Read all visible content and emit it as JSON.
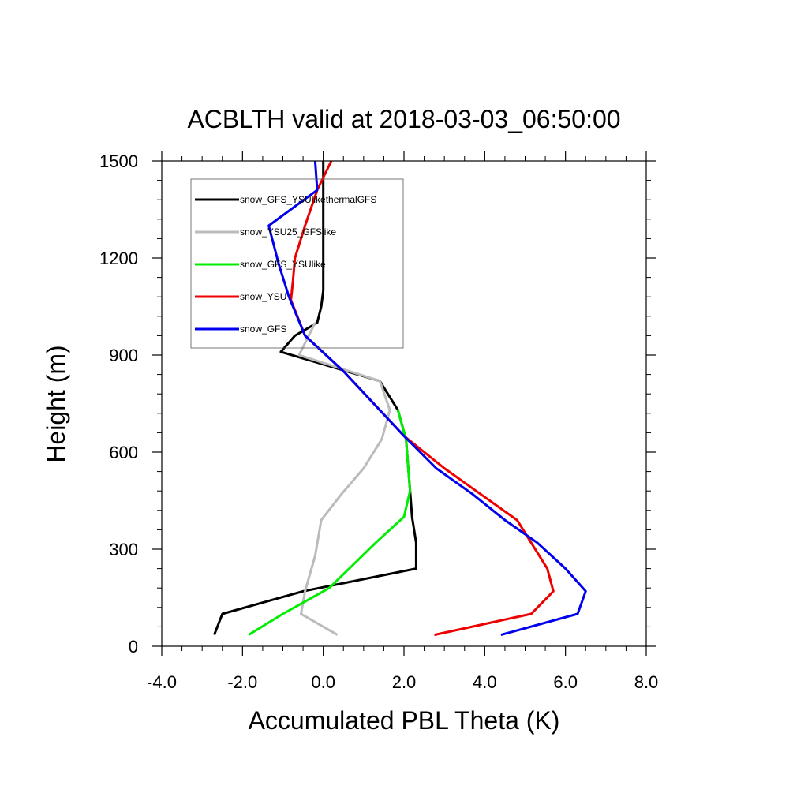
{
  "chart_data": {
    "type": "line",
    "title": "ACBLTH valid at 2018-03-03_06:50:00",
    "xlabel": "Accumulated PBL Theta (K)",
    "ylabel": "Height (m)",
    "xlim": [
      -4.0,
      8.0
    ],
    "ylim": [
      0,
      1500
    ],
    "xticks": [
      -4.0,
      -2.0,
      0.0,
      2.0,
      4.0,
      6.0,
      8.0
    ],
    "xtick_labels": [
      "-4.0",
      "-2.0",
      "0.0",
      "2.0",
      "4.0",
      "6.0",
      "8.0"
    ],
    "yticks": [
      0,
      300,
      600,
      900,
      1200,
      1500
    ],
    "ytick_labels": [
      "0",
      "300",
      "600",
      "900",
      "1200",
      "1500"
    ],
    "grid": false,
    "legend_position": "top-left",
    "series": [
      {
        "name": "snow_GFS_YSUlikethermalGFS",
        "color": "#000000",
        "x": [
          -2.7,
          -2.5,
          -0.5,
          2.3,
          2.3,
          2.2,
          2.15,
          2.1,
          2.05,
          1.85,
          1.4,
          -1.05,
          -0.7,
          -0.15,
          -0.05,
          0.0,
          0.0,
          0.0
        ],
        "y": [
          35,
          100,
          170,
          240,
          320,
          400,
          480,
          560,
          640,
          730,
          820,
          910,
          960,
          1000,
          1050,
          1100,
          1300,
          1500
        ]
      },
      {
        "name": "snow_YSU25_GFSlike",
        "color": "#bbbbbb",
        "x": [
          0.35,
          -0.55,
          -0.45,
          -0.2,
          -0.05,
          0.45,
          1.0,
          1.45,
          1.65,
          1.4,
          -0.6,
          -0.2
        ],
        "y": [
          35,
          100,
          170,
          280,
          390,
          470,
          550,
          640,
          730,
          820,
          900,
          1000
        ]
      },
      {
        "name": "snow_GFS_YSUlike",
        "color": "#00ee00",
        "x": [
          -1.85,
          -1.0,
          0.15,
          1.3,
          2.0,
          2.15,
          2.1,
          2.05,
          1.85
        ],
        "y": [
          35,
          100,
          180,
          320,
          400,
          480,
          560,
          640,
          730
        ]
      },
      {
        "name": "snow_YSU",
        "color": "#ee0000",
        "x": [
          2.75,
          5.15,
          5.7,
          5.55,
          5.15,
          4.8,
          3.9,
          3.0,
          2.0,
          0.5,
          -0.45,
          -0.8,
          -0.75,
          -0.7,
          -0.45,
          -0.15,
          0.2
        ],
        "y": [
          35,
          100,
          170,
          240,
          320,
          390,
          470,
          550,
          650,
          850,
          960,
          1070,
          1130,
          1200,
          1300,
          1410,
          1500
        ]
      },
      {
        "name": "snow_GFS",
        "color": "#0000ee",
        "x": [
          4.4,
          6.3,
          6.5,
          6.0,
          5.3,
          4.5,
          3.7,
          2.8,
          2.0,
          0.5,
          -0.45,
          -0.85,
          -1.1,
          -1.35,
          -0.15,
          -0.2
        ],
        "y": [
          35,
          100,
          170,
          240,
          320,
          390,
          470,
          550,
          650,
          850,
          960,
          1080,
          1180,
          1300,
          1410,
          1500
        ]
      }
    ]
  }
}
